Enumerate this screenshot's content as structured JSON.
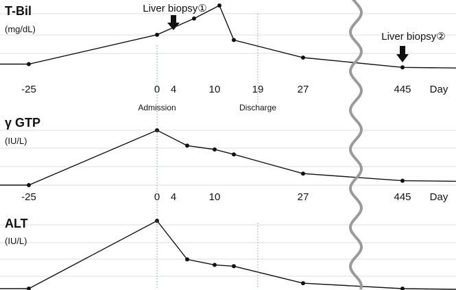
{
  "chart_data": [
    {
      "type": "line",
      "title": "T-Bil",
      "ylabel": "(mg/dL)",
      "xlabel": "Day",
      "x_ticks": [
        "-25",
        "0",
        "4",
        "10",
        "19",
        "27",
        "445"
      ],
      "series": [
        {
          "points": [
            {
              "x": -25,
              "y": 0.1
            },
            {
              "x": 0,
              "y": 0.55
            },
            {
              "x": 7,
              "y": 0.8
            },
            {
              "x": 11,
              "y": 1.0
            },
            {
              "x": 14,
              "y": 0.47
            },
            {
              "x": 27,
              "y": 0.2
            },
            {
              "x": 445,
              "y": 0.05
            }
          ]
        }
      ],
      "events": [
        {
          "day": 0,
          "label": "Admission"
        },
        {
          "day": 19,
          "label": "Discharge"
        }
      ],
      "annotations": [
        {
          "day": 4,
          "label": "Liver biopsy①"
        },
        {
          "day": 445,
          "label": "Liver biopsy②"
        }
      ]
    },
    {
      "type": "line",
      "title": "γ GTP",
      "ylabel": "(IU/L)",
      "xlabel": "Day",
      "x_ticks": [
        "-25",
        "0",
        "4",
        "10",
        "27",
        "445"
      ],
      "series": [
        {
          "points": [
            {
              "x": -25,
              "y": 0.0
            },
            {
              "x": 0,
              "y": 1.0
            },
            {
              "x": 6,
              "y": 0.72
            },
            {
              "x": 10,
              "y": 0.65
            },
            {
              "x": 14,
              "y": 0.56
            },
            {
              "x": 27,
              "y": 0.21
            },
            {
              "x": 445,
              "y": 0.08
            }
          ]
        }
      ]
    },
    {
      "type": "line",
      "title": "ALT",
      "ylabel": "(IU/L)",
      "xlabel": "",
      "x_ticks": [],
      "series": [
        {
          "points": [
            {
              "x": -25,
              "y": 0.0
            },
            {
              "x": 0,
              "y": 1.0
            },
            {
              "x": 6,
              "y": 0.43
            },
            {
              "x": 10,
              "y": 0.35
            },
            {
              "x": 14,
              "y": 0.33
            },
            {
              "x": 27,
              "y": 0.08
            },
            {
              "x": 445,
              "y": 0.0
            }
          ]
        }
      ]
    }
  ]
}
